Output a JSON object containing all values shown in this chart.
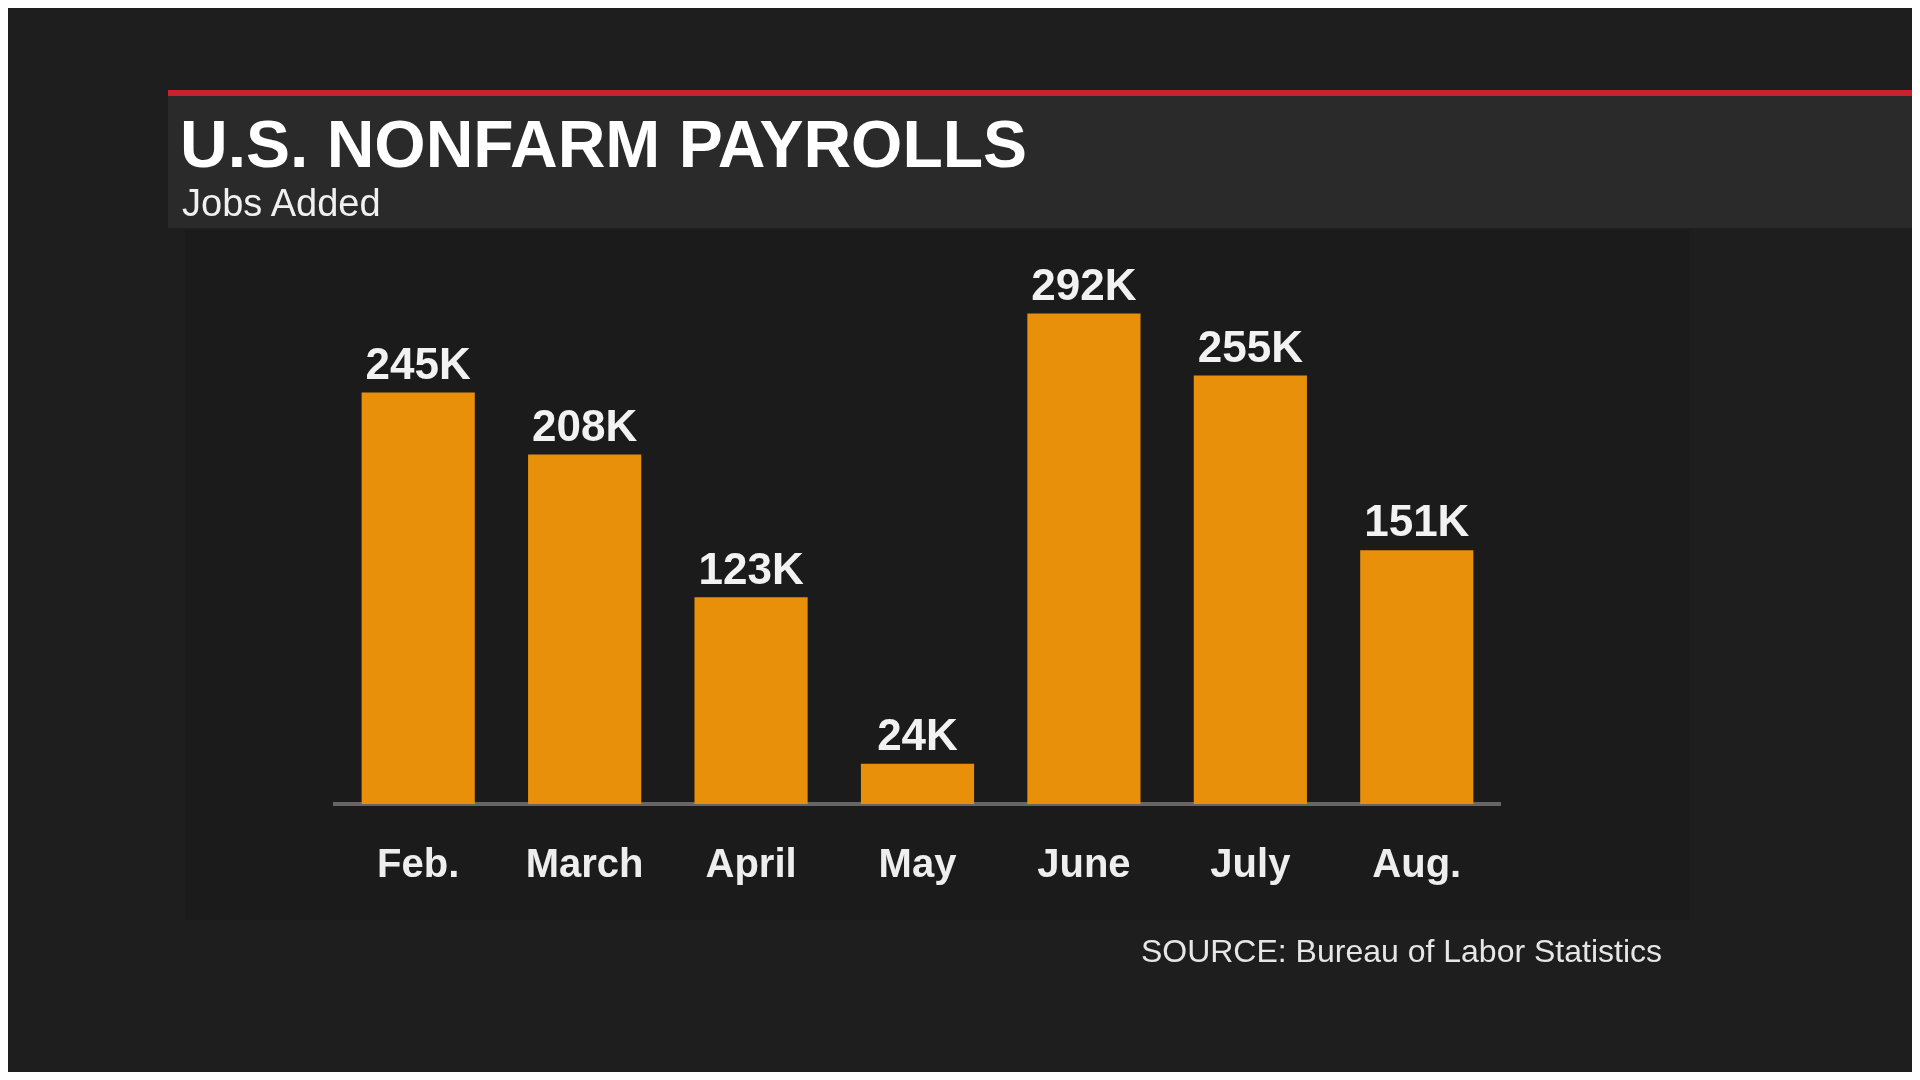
{
  "chart_data": {
    "type": "bar",
    "title": "U.S. NONFARM PAYROLLS",
    "subtitle": "Jobs Added",
    "categories": [
      "Feb.",
      "March",
      "April",
      "May",
      "June",
      "July",
      "Aug."
    ],
    "values": [
      245,
      208,
      123,
      24,
      292,
      255,
      151
    ],
    "value_labels": [
      "245K",
      "208K",
      "123K",
      "24K",
      "292K",
      "255K",
      "151K"
    ],
    "color": "#e8900a",
    "tick_labels": "x",
    "legend": false,
    "annotations": [
      "SOURCE: Bureau of Labor Statistics"
    ]
  }
}
